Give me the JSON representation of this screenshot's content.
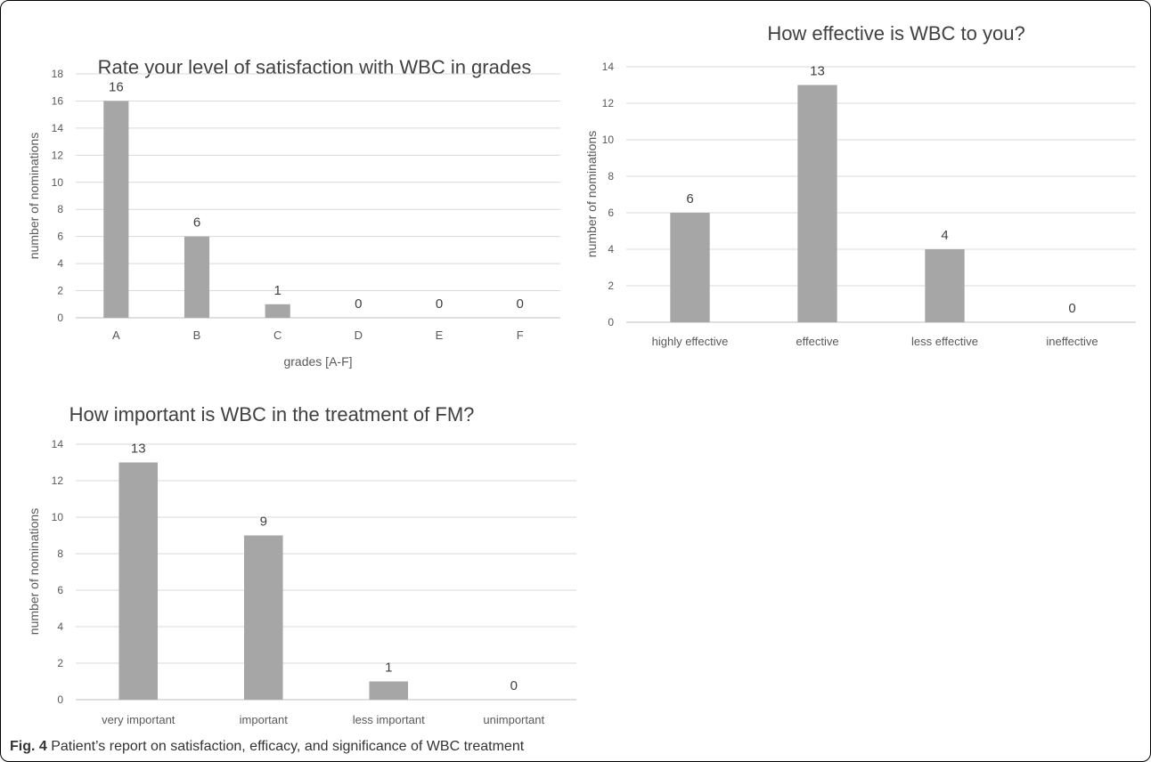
{
  "caption": {
    "label": "Fig. 4",
    "text": " Patient’s report on satisfaction, efficacy, and significance of WBC treatment"
  },
  "colors": {
    "bar": "#a6a6a6",
    "grid": "#d9d9d9"
  },
  "chart_data": [
    {
      "type": "bar",
      "title": "Rate your level of satisfaction with WBC in grades",
      "xlabel": "grades [A-F]",
      "ylabel": "number of nominations",
      "ylim": [
        0,
        18
      ],
      "yticks": [
        0,
        2,
        4,
        6,
        8,
        10,
        12,
        14,
        16,
        18
      ],
      "categories": [
        "A",
        "B",
        "C",
        "D",
        "E",
        "F"
      ],
      "values": [
        16,
        6,
        1,
        0,
        0,
        0
      ],
      "data_labels": true,
      "grid": true,
      "legend": "none"
    },
    {
      "type": "bar",
      "title": "How effective is WBC to you?",
      "xlabel": "",
      "ylabel": "number of nominations",
      "ylim": [
        0,
        14
      ],
      "yticks": [
        0,
        2,
        4,
        6,
        8,
        10,
        12,
        14
      ],
      "categories": [
        "highly effective",
        "effective",
        "less effective",
        "ineffective"
      ],
      "values": [
        6,
        13,
        4,
        0
      ],
      "data_labels": true,
      "grid": true,
      "legend": "none"
    },
    {
      "type": "bar",
      "title": "How important is WBC in the treatment of FM?",
      "xlabel": "",
      "ylabel": "number of nominations",
      "ylim": [
        0,
        14
      ],
      "yticks": [
        0,
        2,
        4,
        6,
        8,
        10,
        12,
        14
      ],
      "categories": [
        "very important",
        "important",
        "less important",
        "unimportant"
      ],
      "values": [
        13,
        9,
        1,
        0
      ],
      "data_labels": true,
      "grid": true,
      "legend": "none"
    }
  ]
}
